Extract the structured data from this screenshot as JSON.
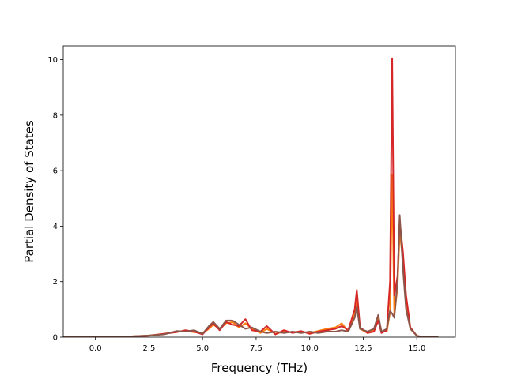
{
  "chart_data": {
    "type": "line",
    "title": "",
    "xlabel": "Frequency (THz)",
    "ylabel": "Partial Density of States",
    "xlim": [
      -1.5,
      16.8
    ],
    "ylim": [
      0,
      10.5
    ],
    "xticks": [
      0.0,
      2.5,
      5.0,
      7.5,
      10.0,
      12.5,
      15.0
    ],
    "xtick_labels": [
      "0.0",
      "2.5",
      "5.0",
      "7.5",
      "10.0",
      "12.5",
      "15.0"
    ],
    "yticks": [
      0,
      2,
      4,
      6,
      8,
      10
    ],
    "ytick_labels": [
      "0",
      "2",
      "4",
      "6",
      "8",
      "10"
    ],
    "grid": false,
    "series": [
      {
        "color": "#ff7f0e",
        "points": [
          [
            -1.5,
            0
          ],
          [
            0.5,
            0
          ],
          [
            1.5,
            0.02
          ],
          [
            2.5,
            0.06
          ],
          [
            3.2,
            0.12
          ],
          [
            3.8,
            0.2
          ],
          [
            4.2,
            0.22
          ],
          [
            4.6,
            0.18
          ],
          [
            5.0,
            0.15
          ],
          [
            5.3,
            0.3
          ],
          [
            5.5,
            0.45
          ],
          [
            5.8,
            0.3
          ],
          [
            6.1,
            0.5
          ],
          [
            6.4,
            0.55
          ],
          [
            6.7,
            0.35
          ],
          [
            7.0,
            0.5
          ],
          [
            7.3,
            0.3
          ],
          [
            7.7,
            0.15
          ],
          [
            8.0,
            0.3
          ],
          [
            8.4,
            0.12
          ],
          [
            8.8,
            0.2
          ],
          [
            9.2,
            0.18
          ],
          [
            9.6,
            0.2
          ],
          [
            10.0,
            0.15
          ],
          [
            10.4,
            0.22
          ],
          [
            10.8,
            0.3
          ],
          [
            11.2,
            0.35
          ],
          [
            11.5,
            0.5
          ],
          [
            11.8,
            0.2
          ],
          [
            12.1,
            0.8
          ],
          [
            12.2,
            1.3
          ],
          [
            12.35,
            0.3
          ],
          [
            12.7,
            0.15
          ],
          [
            13.0,
            0.25
          ],
          [
            13.2,
            0.7
          ],
          [
            13.35,
            0.2
          ],
          [
            13.6,
            0.2
          ],
          [
            13.75,
            0.9
          ],
          [
            13.85,
            5.85
          ],
          [
            13.95,
            0.8
          ],
          [
            14.1,
            1.8
          ],
          [
            14.2,
            3.8
          ],
          [
            14.35,
            2.8
          ],
          [
            14.5,
            1.2
          ],
          [
            14.7,
            0.3
          ],
          [
            15.0,
            0.05
          ],
          [
            15.3,
            0
          ],
          [
            16.0,
            0
          ]
        ]
      },
      {
        "color": "#d62728",
        "points": [
          [
            -1.5,
            0
          ],
          [
            0.5,
            0
          ],
          [
            1.5,
            0.02
          ],
          [
            2.5,
            0.05
          ],
          [
            3.2,
            0.12
          ],
          [
            3.8,
            0.18
          ],
          [
            4.2,
            0.25
          ],
          [
            4.6,
            0.2
          ],
          [
            5.0,
            0.1
          ],
          [
            5.3,
            0.35
          ],
          [
            5.5,
            0.5
          ],
          [
            5.8,
            0.25
          ],
          [
            6.1,
            0.55
          ],
          [
            6.4,
            0.45
          ],
          [
            6.7,
            0.4
          ],
          [
            7.0,
            0.65
          ],
          [
            7.3,
            0.25
          ],
          [
            7.7,
            0.2
          ],
          [
            8.0,
            0.4
          ],
          [
            8.4,
            0.1
          ],
          [
            8.8,
            0.25
          ],
          [
            9.2,
            0.15
          ],
          [
            9.6,
            0.22
          ],
          [
            10.0,
            0.12
          ],
          [
            10.4,
            0.2
          ],
          [
            10.8,
            0.25
          ],
          [
            11.2,
            0.3
          ],
          [
            11.5,
            0.4
          ],
          [
            11.8,
            0.25
          ],
          [
            12.1,
            1.0
          ],
          [
            12.2,
            1.7
          ],
          [
            12.35,
            0.35
          ],
          [
            12.7,
            0.15
          ],
          [
            13.0,
            0.2
          ],
          [
            13.2,
            0.6
          ],
          [
            13.35,
            0.15
          ],
          [
            13.6,
            0.25
          ],
          [
            13.75,
            2.0
          ],
          [
            13.85,
            10.05
          ],
          [
            13.95,
            1.5
          ],
          [
            14.1,
            2.2
          ],
          [
            14.2,
            4.2
          ],
          [
            14.35,
            3.1
          ],
          [
            14.5,
            1.5
          ],
          [
            14.7,
            0.35
          ],
          [
            15.0,
            0.05
          ],
          [
            15.3,
            0
          ],
          [
            16.0,
            0
          ]
        ]
      },
      {
        "color": "#8c564b",
        "points": [
          [
            -1.5,
            0
          ],
          [
            0.5,
            0
          ],
          [
            1.5,
            0.02
          ],
          [
            2.5,
            0.06
          ],
          [
            3.2,
            0.1
          ],
          [
            3.8,
            0.22
          ],
          [
            4.2,
            0.2
          ],
          [
            4.6,
            0.25
          ],
          [
            5.0,
            0.12
          ],
          [
            5.3,
            0.4
          ],
          [
            5.5,
            0.55
          ],
          [
            5.8,
            0.3
          ],
          [
            6.1,
            0.6
          ],
          [
            6.4,
            0.6
          ],
          [
            6.7,
            0.45
          ],
          [
            7.0,
            0.3
          ],
          [
            7.3,
            0.35
          ],
          [
            7.7,
            0.2
          ],
          [
            8.0,
            0.15
          ],
          [
            8.4,
            0.2
          ],
          [
            8.8,
            0.15
          ],
          [
            9.2,
            0.2
          ],
          [
            9.6,
            0.15
          ],
          [
            10.0,
            0.2
          ],
          [
            10.4,
            0.15
          ],
          [
            10.8,
            0.2
          ],
          [
            11.2,
            0.2
          ],
          [
            11.5,
            0.25
          ],
          [
            11.8,
            0.2
          ],
          [
            12.1,
            0.7
          ],
          [
            12.2,
            1.1
          ],
          [
            12.35,
            0.3
          ],
          [
            12.7,
            0.2
          ],
          [
            13.0,
            0.3
          ],
          [
            13.2,
            0.8
          ],
          [
            13.35,
            0.2
          ],
          [
            13.6,
            0.3
          ],
          [
            13.75,
            0.95
          ],
          [
            13.85,
            0.85
          ],
          [
            13.95,
            0.7
          ],
          [
            14.1,
            2.0
          ],
          [
            14.2,
            4.4
          ],
          [
            14.35,
            2.5
          ],
          [
            14.5,
            1.0
          ],
          [
            14.7,
            0.3
          ],
          [
            15.0,
            0.05
          ],
          [
            15.3,
            0
          ],
          [
            16.0,
            0
          ]
        ]
      }
    ]
  }
}
